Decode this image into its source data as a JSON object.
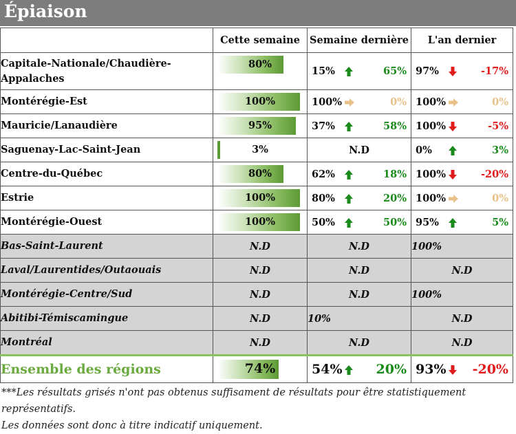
{
  "title": "Épiaison",
  "headers": [
    "",
    "Cette semaine",
    "Semaine dernière",
    "L'an dernier"
  ],
  "colors": {
    "up": "#1a8a1a",
    "down": "#e01b1b",
    "same": "#e8c08a",
    "bar": "#5c9a35",
    "gray_row": "#d4d4d4"
  },
  "chart_data": {
    "type": "table",
    "rows": [
      {
        "region": "Capitale-Nationale/Chaudière-Appalaches",
        "this_week": "80%",
        "this_week_value": 80,
        "last_week": "15%",
        "last_week_trend": "up",
        "last_week_diff": "65%",
        "last_year": "97%",
        "last_year_trend": "down",
        "last_year_diff": "-17%",
        "gray": false
      },
      {
        "region": "Montérégie-Est",
        "this_week": "100%",
        "this_week_value": 100,
        "last_week": "100%",
        "last_week_trend": "same",
        "last_week_diff": "0%",
        "last_year": "100%",
        "last_year_trend": "same",
        "last_year_diff": "0%",
        "gray": false
      },
      {
        "region": "Mauricie/Lanaudière",
        "this_week": "95%",
        "this_week_value": 95,
        "last_week": "37%",
        "last_week_trend": "up",
        "last_week_diff": "58%",
        "last_year": "100%",
        "last_year_trend": "down",
        "last_year_diff": "-5%",
        "gray": false
      },
      {
        "region": "Saguenay-Lac-Saint-Jean",
        "this_week": "3%",
        "this_week_value": 3,
        "last_week_nd": "N.D",
        "last_year": "0%",
        "last_year_trend": "up",
        "last_year_diff": "3%",
        "gray": false
      },
      {
        "region": "Centre-du-Québec",
        "this_week": "80%",
        "this_week_value": 80,
        "last_week": "62%",
        "last_week_trend": "up",
        "last_week_diff": "18%",
        "last_year": "100%",
        "last_year_trend": "down",
        "last_year_diff": "-20%",
        "gray": false
      },
      {
        "region": "Estrie",
        "this_week": "100%",
        "this_week_value": 100,
        "last_week": "80%",
        "last_week_trend": "up",
        "last_week_diff": "20%",
        "last_year": "100%",
        "last_year_trend": "same",
        "last_year_diff": "0%",
        "gray": false
      },
      {
        "region": "Montérégie-Ouest",
        "this_week": "100%",
        "this_week_value": 100,
        "last_week": "50%",
        "last_week_trend": "up",
        "last_week_diff": "50%",
        "last_year": "95%",
        "last_year_trend": "up",
        "last_year_diff": "5%",
        "gray": false
      },
      {
        "region": "Bas-Saint-Laurent",
        "this_week_nd": "N.D",
        "last_week_nd": "N.D",
        "last_year_left": "100%",
        "gray": true
      },
      {
        "region": "Laval/Laurentides/Outaouais",
        "this_week_nd": "N.D",
        "last_week_nd": "N.D",
        "last_year_nd": "N.D",
        "gray": true
      },
      {
        "region": "Montérégie-Centre/Sud",
        "this_week_nd": "N.D",
        "last_week_nd": "N.D",
        "last_year_left": "100%",
        "gray": true
      },
      {
        "region": "Abitibi-Témiscamingue",
        "this_week_nd": "N.D",
        "last_week_left": "10%",
        "last_year_nd": "N.D",
        "gray": true
      },
      {
        "region": "Montréal",
        "this_week_nd": "N.D",
        "last_week_nd": "N.D",
        "last_year_nd": "N.D",
        "gray": true
      }
    ],
    "total": {
      "region": "Ensemble des régions",
      "this_week": "74%",
      "this_week_value": 74,
      "last_week": "54%",
      "last_week_trend": "up",
      "last_week_diff": "20%",
      "last_year": "93%",
      "last_year_trend": "down",
      "last_year_diff": "-20%"
    }
  },
  "note_line1": "***Les résultats grisés n'ont pas obtenus suffisament de résultats pour être statistiquement représentatifs.",
  "note_line2": "Les données sont donc à titre indicatif uniquement."
}
